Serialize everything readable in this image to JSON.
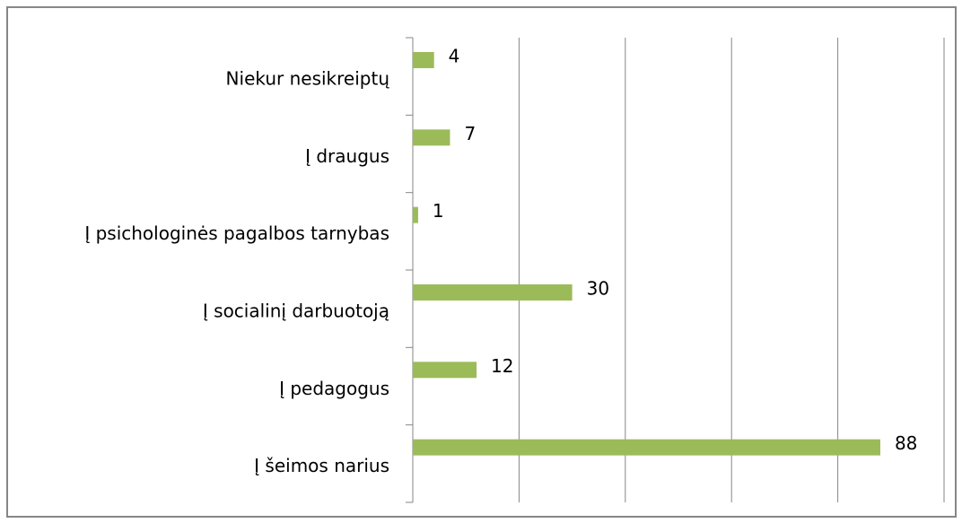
{
  "chart_data": {
    "type": "bar",
    "orientation": "horizontal",
    "categories": [
      "Niekur nesikreiptų",
      "Į draugus",
      "Į psichologinės pagalbos tarnybas",
      "Į socialinį darbuotoją",
      "Į pedagogus",
      "Į šeimos narius"
    ],
    "values": [
      4,
      7,
      1,
      30,
      12,
      88
    ],
    "color": "#9bbb59",
    "xlim": [
      0,
      100
    ],
    "xticks": [
      0,
      20,
      40,
      60,
      80,
      100
    ],
    "grid": true
  }
}
